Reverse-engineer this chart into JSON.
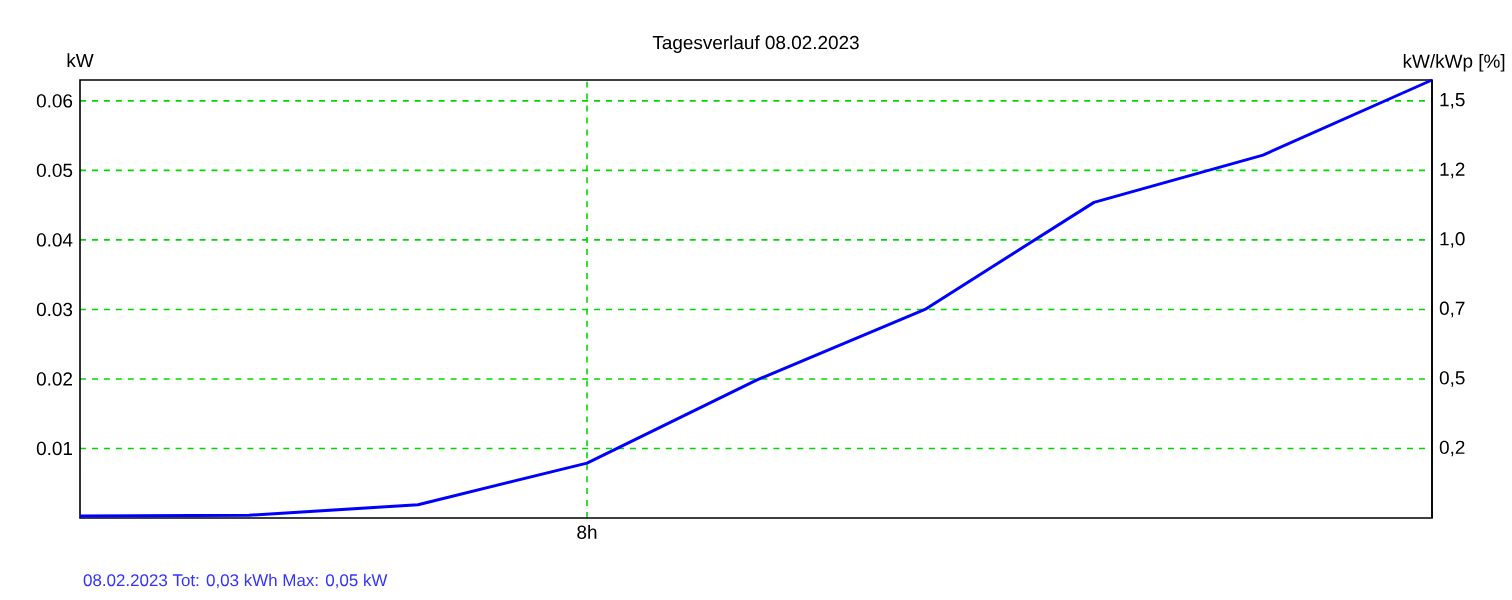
{
  "chart_data": {
    "type": "line",
    "title": "Tagesverlauf 08.02.2023",
    "ylabel": "kW",
    "y2label": "kW/kWp [%]",
    "annotations": [
      "08.02.2023 Tot: 0,03 kWh Max: 0,05 kW"
    ],
    "categories": [
      null,
      null,
      null,
      "8h",
      null,
      null,
      null,
      null,
      null
    ],
    "series": [
      {
        "color": "#0000ff",
        "values": [
          0.0003,
          0.0004,
          0.0019,
          0.0079,
          0.0198,
          0.03,
          0.0454,
          0.0522,
          0.063
        ]
      }
    ],
    "ylim": [
      0,
      0.063
    ],
    "yticks": [
      {
        "value": 0.01,
        "label": "0.01"
      },
      {
        "value": 0.02,
        "label": "0.02"
      },
      {
        "value": 0.03,
        "label": "0.03"
      },
      {
        "value": 0.04,
        "label": "0.04"
      },
      {
        "value": 0.05,
        "label": "0.05"
      },
      {
        "value": 0.06,
        "label": "0.06"
      }
    ],
    "y2lim": [
      0,
      1.575
    ],
    "y2ticks": [
      {
        "value": 0.25,
        "label": "0,2"
      },
      {
        "value": 0.5,
        "label": "0,5"
      },
      {
        "value": 0.75,
        "label": "0,7"
      },
      {
        "value": 1.0,
        "label": "1,0"
      },
      {
        "value": 1.25,
        "label": "1,2"
      },
      {
        "value": 1.5,
        "label": "1,5"
      }
    ],
    "grid": true,
    "marker": "none",
    "line_style": "solid"
  }
}
